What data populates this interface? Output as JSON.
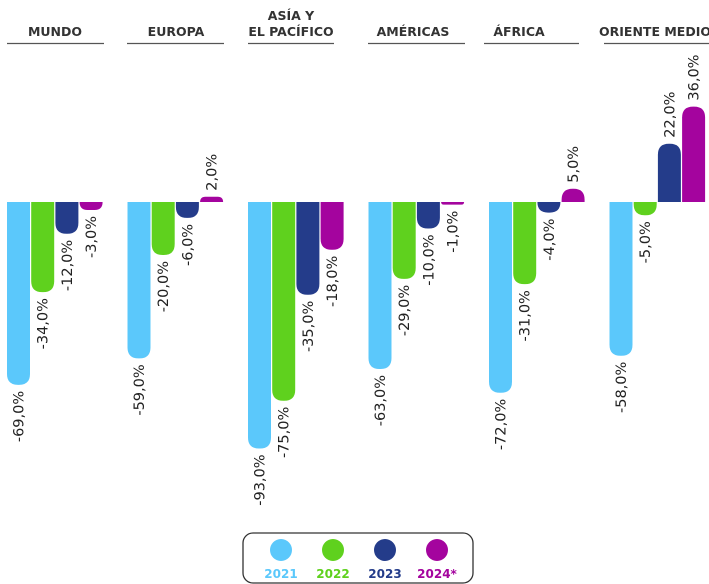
{
  "chart_data": {
    "type": "bar",
    "categories": [
      [
        "MUNDO"
      ],
      [
        "EUROPA"
      ],
      [
        "ASÍA Y",
        "EL PACÍFICO"
      ],
      [
        "AMÉRICAS"
      ],
      [
        "ÁFRICA"
      ],
      [
        "ORIENTE MEDIO"
      ]
    ],
    "series": [
      {
        "name": "2021",
        "color": "#5bc8fb",
        "values": [
          -69,
          -59,
          -93,
          -63,
          -72,
          -58
        ],
        "labels": [
          "-69,0%",
          "-59,0%",
          "-93,0%",
          "-63,0%",
          "-72,0%",
          "-58,0%"
        ]
      },
      {
        "name": "2022",
        "color": "#5fd11e",
        "values": [
          -34,
          -20,
          -75,
          -29,
          -31,
          -5
        ],
        "labels": [
          "-34,0%",
          "-20,0%",
          "-75,0%",
          "-29,0%",
          "-31,0%",
          "-5,0%"
        ]
      },
      {
        "name": "2023",
        "color": "#243c8a",
        "values": [
          -12,
          -6,
          -35,
          -10,
          -4,
          22
        ],
        "labels": [
          "-12,0%",
          "-6,0%",
          "-35,0%",
          "-10,0%",
          "-4,0%",
          "22,0%"
        ]
      },
      {
        "name": "2024*",
        "color": "#a4049e",
        "values": [
          -3,
          2,
          -18,
          -1,
          5,
          36
        ],
        "labels": [
          "-3,0%",
          "2,0%",
          "-18,0%",
          "-1,0%",
          "5,0%",
          "36,0%"
        ]
      }
    ],
    "ylim": [
      -93,
      36
    ],
    "grid": false,
    "legend_position": "bottom-center"
  }
}
